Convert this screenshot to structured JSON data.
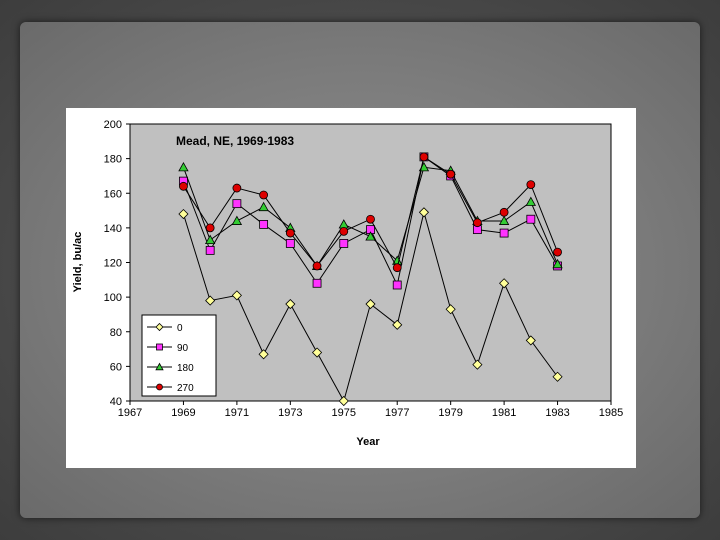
{
  "chart_data": {
    "type": "line",
    "title": "Mead, NE, 1969-1983",
    "xlabel": "Year",
    "ylabel": "Yield, bu/ac",
    "xlim": [
      1967,
      1985
    ],
    "ylim": [
      40,
      200
    ],
    "x_ticks": [
      1967,
      1969,
      1971,
      1973,
      1975,
      1977,
      1979,
      1981,
      1983,
      1985
    ],
    "y_ticks": [
      40,
      60,
      80,
      100,
      120,
      140,
      160,
      180,
      200
    ],
    "grid": false,
    "legend_position": "bottom-left",
    "plot_background": "#c0c0c0",
    "x": [
      1969,
      1970,
      1971,
      1972,
      1973,
      1974,
      1975,
      1976,
      1977,
      1978,
      1979,
      1980,
      1981,
      1982,
      1983
    ],
    "series": [
      {
        "name": "0",
        "color": "#ffff99",
        "marker": "diamond",
        "values": [
          148,
          98,
          101,
          67,
          96,
          68,
          40,
          96,
          84,
          149,
          93,
          61,
          108,
          75,
          54
        ]
      },
      {
        "name": "90",
        "color": "#ff33ff",
        "marker": "square",
        "values": [
          167,
          127,
          154,
          142,
          131,
          108,
          131,
          139,
          107,
          181,
          170,
          139,
          137,
          145,
          118
        ]
      },
      {
        "name": "180",
        "color": "#33cc33",
        "marker": "triangle",
        "values": [
          175,
          133,
          144,
          152,
          140,
          118,
          142,
          135,
          121,
          175,
          173,
          144,
          144,
          155,
          119
        ]
      },
      {
        "name": "270",
        "color": "#dd0000",
        "marker": "circle",
        "values": [
          164,
          140,
          163,
          159,
          137,
          118,
          138,
          145,
          117,
          181,
          171,
          143,
          149,
          165,
          126
        ]
      }
    ]
  }
}
